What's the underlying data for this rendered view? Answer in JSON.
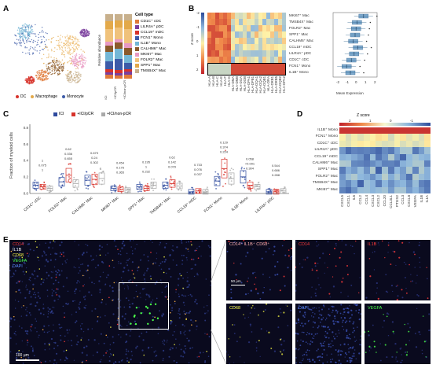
{
  "panels": {
    "a": "A",
    "b": "B",
    "c": "C",
    "d": "D",
    "e": "E"
  },
  "panel_a": {
    "legend_title": "Cell type",
    "cell_types": [
      {
        "name": "CD1C⁺ cDC",
        "color": "#e07a3a"
      },
      {
        "name": "LILR4A⁺ pDC",
        "color": "#7b3f9e"
      },
      {
        "name": "CCL19⁺ mDC",
        "color": "#d7332b"
      },
      {
        "name": "FCN1⁺ Mono",
        "color": "#3d5ba8"
      },
      {
        "name": "IL1B⁺ Mono",
        "color": "#74b7d6"
      },
      {
        "name": "CALHM6⁺ Mac",
        "color": "#8b5a2b"
      },
      {
        "name": "MKI67⁺ Mac",
        "color": "#e899c3"
      },
      {
        "name": "FOLR2⁺ Mac",
        "color": "#f0c27b"
      },
      {
        "name": "SPP1⁺ Mac",
        "color": "#e3a94a"
      },
      {
        "name": "TMSB4X⁺ Mac",
        "color": "#c8b08c"
      }
    ],
    "umap_legend": [
      {
        "name": "DC",
        "color": "#d7332b"
      },
      {
        "name": "Macrophage",
        "color": "#e3a94a"
      },
      {
        "name": "Monocyte",
        "color": "#3d5ba8"
      }
    ],
    "bar_ylabel": "Relative abundance",
    "bar_groups": [
      "ICI",
      "+ICI/pCR",
      "+ICI/non-pCR"
    ]
  },
  "panel_b": {
    "zscore_label": "Z score",
    "zscore_ticks": [
      "-2",
      "-1",
      "0",
      "1",
      "2"
    ],
    "rows": [
      "MKI67⁺ Mac",
      "TMSB4X⁺ Mac",
      "FOLR2⁺ Mac",
      "SPP1⁺ Mac",
      "CALHM6⁺ Mac",
      "CCL19⁺ mDC",
      "LILR4A⁺ pDC",
      "CD1C⁺ cDC",
      "FCN1⁺ Mono",
      "IL1B⁺ Mono"
    ],
    "cols": [
      "HLA-A",
      "HLA-B",
      "HLA-C",
      "HLA-E",
      "HLA-F",
      "HLA-G",
      "HLA-DMA",
      "HLA-DMB",
      "HLA-DOA",
      "HLA-DOB",
      "HLA-DPA1",
      "HLA-DPB1",
      "HLA-DQA1",
      "HLA-DQA2",
      "HLA-DQB1",
      "HLA-DRA",
      "HLA-DRB1",
      "HLA-DRB5",
      "HLA-DQB2",
      "HLA-DPA2"
    ],
    "box_xlabel": "Mean Expression",
    "box_ticks": [
      "-2",
      "-1",
      "0",
      "1",
      "2"
    ]
  },
  "panel_c": {
    "ylabel": "Fraction of myeloid cells",
    "legend": [
      {
        "name": "ICI",
        "color": "#2e4a9e"
      },
      {
        "name": "+ICI/pCR",
        "color": "#d7332b"
      },
      {
        "name": "+ICI/non-pCR",
        "color": "#a9a9a9"
      }
    ],
    "yticks": [
      "0.0",
      "0.2",
      "0.4",
      "0.6",
      "0.8"
    ],
    "categories": [
      "CD1C⁺ cDC",
      "FOLR2⁺ Mac",
      "CALHM6⁺ Mac",
      "MKI67⁺ Mac",
      "SPP1⁺ Mac",
      "TMSB4X⁺ Mac",
      "CCL19⁺ mDC",
      "FCN1⁺ Mono",
      "IL1B⁺ Mono",
      "LILR4A⁺ pDC"
    ],
    "pvalues": [
      [
        "1",
        "0.075",
        "1"
      ],
      [
        "0.655",
        "0.036",
        "0.62"
      ],
      [
        "0.302",
        "0.24",
        "0.679"
      ],
      [
        "0.365",
        "0.176",
        "0.454"
      ],
      [
        "0.232",
        "1",
        "0.195"
      ],
      [
        "0.079",
        "0.142",
        "0.62"
      ],
      [
        "0.037",
        "0.076",
        "0.733"
      ],
      [
        "0.224",
        "0.374",
        "0.129"
      ],
      [
        "0.304",
        "<0.001",
        "0.058"
      ],
      [
        "0.288",
        "0.686",
        "0.544"
      ]
    ]
  },
  "panel_d": {
    "zscore_label": "Z score",
    "zscore_ticks": [
      "2",
      "1",
      "0",
      "-1"
    ],
    "rows": [
      "IL1B⁺ Mono",
      "FCN1⁺ Mono",
      "CD1C⁺ cDC",
      "LILR4A⁺ pDC",
      "CCL19⁺ mDC",
      "CALHM6⁺ Mac",
      "SPP1⁺ Mac",
      "FOLR2⁺ Mac",
      "TMSB4X⁺ Mac",
      "MKI67⁺ Mac"
    ],
    "cols": [
      "CXCL5",
      "CXCL1",
      "IL6",
      "CCL2",
      "CCL4",
      "CXCL3",
      "CXCL2",
      "CCL20",
      "CCL3L1",
      "PTGS2",
      "CCL3",
      "CXCL8",
      "VEGFA",
      "IL1B",
      "IL1A"
    ]
  },
  "panel_e": {
    "main_labels": [
      {
        "text": "CD14",
        "color": "#ff3b3b"
      },
      {
        "text": "IL1B",
        "color": "#ffffff"
      },
      {
        "text": "CD68",
        "color": "#ffff4a"
      },
      {
        "text": "VEGFA",
        "color": "#4aff4a"
      },
      {
        "text": "DAPI",
        "color": "#5a8cff"
      }
    ],
    "scalebar_main": "100 μm",
    "scalebar_zoom": "50 μm",
    "tiles": [
      {
        "label": "CD14⁺ IL1B⁺ CD68⁺",
        "color": "#ffb0b0"
      },
      {
        "label": "CD14",
        "color": "#ff3b3b"
      },
      {
        "label": "IL1B",
        "color": "#ff3b3b"
      },
      {
        "label": "CD68",
        "color": "#ffff4a"
      },
      {
        "label": "DAPI",
        "color": "#5a8cff"
      },
      {
        "label": "VEGFA",
        "color": "#4aff4a"
      }
    ]
  }
}
